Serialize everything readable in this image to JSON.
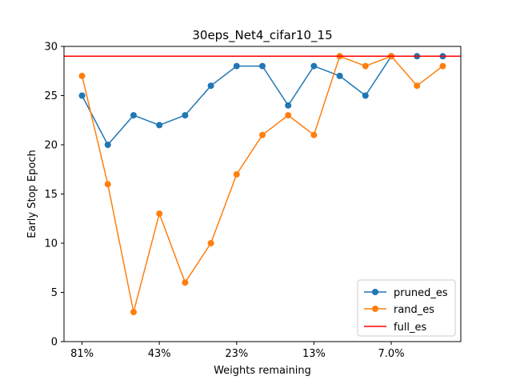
{
  "chart_data": {
    "type": "line",
    "title": "30eps_Net4_cifar10_15",
    "xlabel": "Weights remaining",
    "ylabel": "Early Stop Epoch",
    "ylim": [
      0,
      30
    ],
    "yticks": [
      0,
      5,
      10,
      15,
      20,
      25,
      30
    ],
    "x": [
      0,
      1,
      2,
      3,
      4,
      5,
      6,
      7,
      8,
      9,
      10,
      11,
      12,
      13,
      14
    ],
    "xticks": [
      {
        "x": 0,
        "label": "81%"
      },
      {
        "x": 3,
        "label": "43%"
      },
      {
        "x": 6,
        "label": "23%"
      },
      {
        "x": 9,
        "label": "13%"
      },
      {
        "x": 12,
        "label": "7.0%"
      }
    ],
    "grid": false,
    "legend_position": "lower-right",
    "series": [
      {
        "name": "pruned_es",
        "color": "#1f77b4",
        "marker": "circle",
        "values": [
          25,
          20,
          23,
          22,
          23,
          26,
          28,
          28,
          24,
          28,
          27,
          25,
          29,
          29,
          29
        ]
      },
      {
        "name": "rand_es",
        "color": "#ff7f0e",
        "marker": "circle",
        "values": [
          27,
          16,
          3,
          13,
          6,
          10,
          17,
          21,
          23,
          21,
          29,
          28,
          29,
          26,
          28
        ]
      }
    ],
    "hline": {
      "name": "full_es",
      "color": "#ff0000",
      "y": 29
    }
  }
}
